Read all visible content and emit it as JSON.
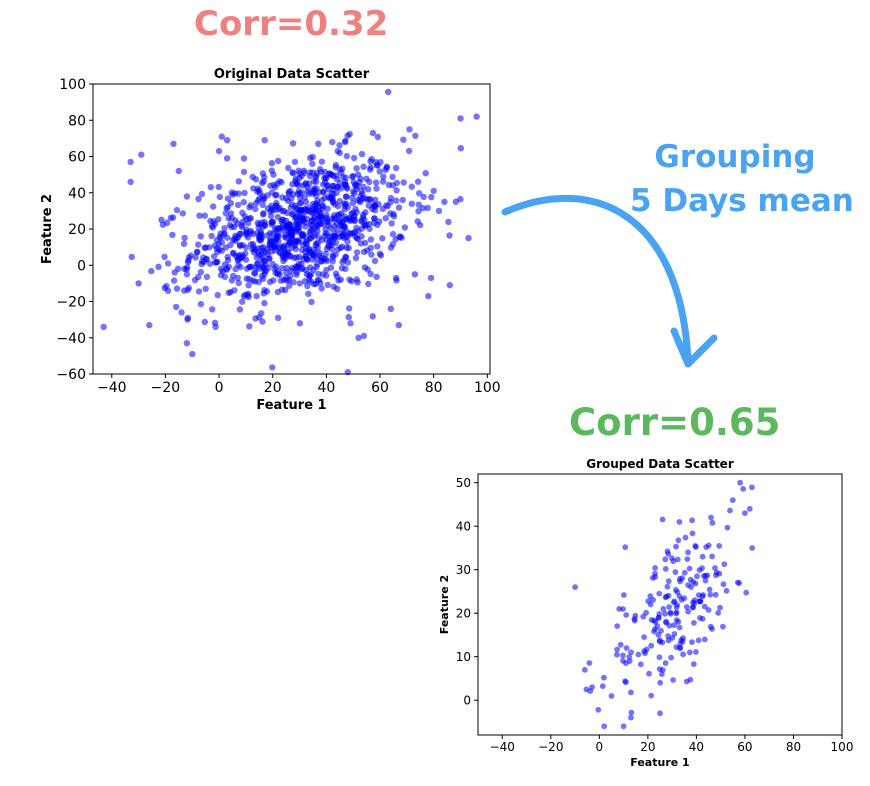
{
  "annotations": {
    "corr_original": "Corr=0.32",
    "corr_grouped": "Corr=0.65",
    "grouping_line1": "Grouping",
    "grouping_line2": "5 Days mean"
  },
  "colors": {
    "points": "#0000ff",
    "corr_original": "#f08080",
    "corr_grouped": "#5cb85c",
    "arrow": "#4aa3f0"
  },
  "chart_data": [
    {
      "id": "original",
      "type": "scatter",
      "title": "Original Data Scatter",
      "xlabel": "Feature 1",
      "ylabel": "Feature 2",
      "xlim": [
        -47,
        101
      ],
      "ylim": [
        -60,
        100
      ],
      "xticks": [
        -40,
        -20,
        0,
        20,
        40,
        60,
        80,
        100
      ],
      "yticks": [
        -60,
        -40,
        -20,
        0,
        20,
        40,
        60,
        80,
        100
      ],
      "grid": false,
      "generated_points": {
        "n": 1000,
        "mean_x": 30,
        "sd_x": 20,
        "mean_y": 20,
        "sd_y": 20,
        "corr": 0.32
      },
      "outliers": [
        [
          -43,
          -34
        ],
        [
          -33,
          57
        ],
        [
          -33,
          46
        ],
        [
          -29,
          61
        ],
        [
          -30,
          -10
        ],
        [
          -26,
          -33
        ],
        [
          -19,
          1
        ],
        [
          -17,
          67
        ],
        [
          -16,
          -23
        ],
        [
          -15,
          52
        ],
        [
          -14,
          -26
        ],
        [
          -12,
          -43
        ],
        [
          -10,
          -49
        ],
        [
          -13,
          -14
        ],
        [
          -12,
          -5
        ],
        [
          -5,
          -13
        ],
        [
          0,
          63
        ],
        [
          1,
          71
        ],
        [
          3,
          69
        ],
        [
          3,
          59
        ],
        [
          8,
          -1
        ],
        [
          11,
          -11
        ],
        [
          14,
          -17
        ],
        [
          16,
          -6
        ],
        [
          17,
          69
        ],
        [
          22,
          -29
        ],
        [
          25,
          -7
        ],
        [
          27,
          -3
        ],
        [
          37,
          67
        ],
        [
          44,
          -13
        ],
        [
          45,
          62
        ],
        [
          47,
          68
        ],
        [
          48,
          -59
        ],
        [
          49,
          -32
        ],
        [
          52,
          -40
        ],
        [
          54,
          -39
        ],
        [
          56,
          46
        ],
        [
          64,
          -24
        ],
        [
          66,
          -7
        ],
        [
          67,
          -33
        ],
        [
          71,
          75
        ],
        [
          73,
          -5
        ],
        [
          78,
          -17
        ],
        [
          79,
          -7
        ],
        [
          80,
          41
        ],
        [
          82,
          30
        ],
        [
          84,
          35
        ],
        [
          86,
          -11
        ],
        [
          90,
          81
        ],
        [
          93,
          15
        ],
        [
          96,
          82
        ]
      ]
    },
    {
      "id": "grouped",
      "type": "scatter",
      "title": "Grouped Data Scatter",
      "xlabel": "Feature 1",
      "ylabel": "Feature 2",
      "xlim": [
        -50,
        100
      ],
      "ylim": [
        -8,
        52
      ],
      "xticks": [
        -40,
        -20,
        0,
        20,
        40,
        60,
        80,
        100
      ],
      "yticks": [
        0,
        10,
        20,
        30,
        40,
        50
      ],
      "grid": false,
      "generated_points": {
        "n": 200,
        "mean_x": 30,
        "sd_x": 15,
        "mean_y": 20,
        "sd_y": 10,
        "corr": 0.65
      },
      "outliers": [
        [
          -10,
          26
        ],
        [
          -6,
          7
        ],
        [
          -3,
          3
        ],
        [
          2,
          -6
        ],
        [
          5,
          1
        ],
        [
          10,
          -6
        ],
        [
          13,
          -4
        ],
        [
          25,
          -3
        ],
        [
          55,
          46
        ],
        [
          58,
          50
        ],
        [
          60,
          43
        ],
        [
          62,
          44
        ],
        [
          63,
          35
        ],
        [
          46,
          42
        ],
        [
          33,
          41
        ]
      ]
    }
  ]
}
